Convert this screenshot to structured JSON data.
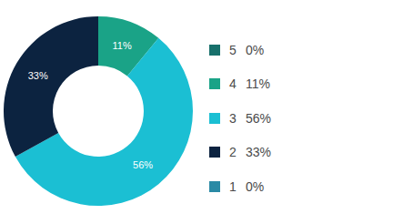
{
  "chart_data": {
    "type": "pie",
    "categories": [
      "5",
      "4",
      "3",
      "2",
      "1"
    ],
    "values": [
      0,
      11,
      56,
      33,
      0
    ],
    "value_labels": [
      "0%",
      "11%",
      "56%",
      "33%",
      "0%"
    ],
    "colors": [
      "#17706b",
      "#1aa387",
      "#1bbfd3",
      "#0c2340",
      "#2a8aa5"
    ],
    "data_labels": true,
    "legend": "right"
  }
}
